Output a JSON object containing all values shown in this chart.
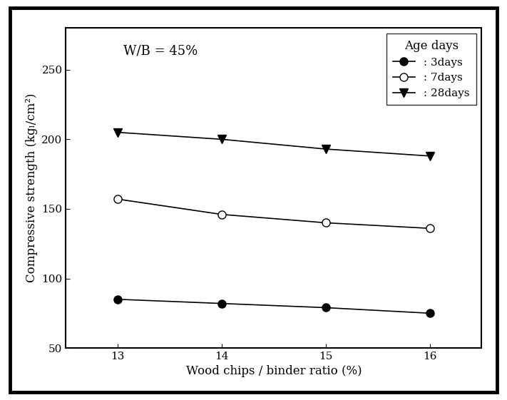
{
  "x": [
    13,
    14,
    15,
    16
  ],
  "series": {
    "3days": [
      85,
      82,
      79,
      75
    ],
    "7days": [
      157,
      146,
      140,
      136
    ],
    "28days": [
      205,
      200,
      193,
      188
    ]
  },
  "markers": {
    "3days": {
      "marker": "o",
      "fillstyle": "full",
      "markersize": 8
    },
    "7days": {
      "marker": "o",
      "fillstyle": "none",
      "markersize": 8
    },
    "28days": {
      "marker": "v",
      "fillstyle": "full",
      "markersize": 9
    }
  },
  "legend_labels": {
    "3days": " : 3days",
    "7days": " : 7days",
    "28days": " : 28days"
  },
  "legend_title": "Age days",
  "annotation": "W/B = 45%",
  "xlabel": "Wood chips / binder ratio (%)",
  "ylabel": "Compressive strength (kgₗ/cm²)",
  "xlim": [
    12.5,
    16.5
  ],
  "ylim": [
    50,
    280
  ],
  "yticks": [
    50,
    100,
    150,
    200,
    250
  ],
  "xticks": [
    13,
    14,
    15,
    16
  ],
  "line_color": "black",
  "line_width": 1.2,
  "background_color": "#ffffff",
  "label_fontsize": 12,
  "tick_fontsize": 11,
  "legend_fontsize": 11,
  "annotation_fontsize": 13
}
